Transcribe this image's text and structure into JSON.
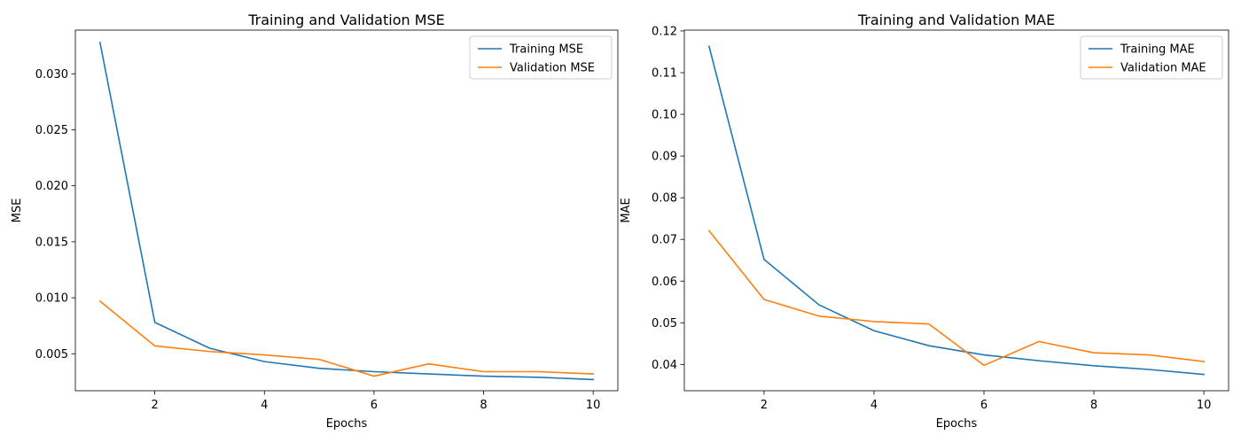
{
  "colors": {
    "training": "#1f77b4",
    "validation": "#ff7f0e",
    "axes": "#000000",
    "background": "#ffffff",
    "legend_border": "#cccccc"
  },
  "chart_data": [
    {
      "type": "line",
      "title": "Training and Validation MSE",
      "xlabel": "Epochs",
      "ylabel": "MSE",
      "x": [
        1,
        2,
        3,
        4,
        5,
        6,
        7,
        8,
        9,
        10
      ],
      "xlim": [
        0.55,
        10.45
      ],
      "ylim": [
        0.0017,
        0.0339
      ],
      "xticks": [
        2,
        4,
        6,
        8,
        10
      ],
      "xtick_labels": [
        "2",
        "4",
        "6",
        "8",
        "10"
      ],
      "yticks": [
        0.005,
        0.01,
        0.015,
        0.02,
        0.025,
        0.03
      ],
      "ytick_labels": [
        "0.005",
        "0.010",
        "0.015",
        "0.020",
        "0.025",
        "0.030"
      ],
      "grid": false,
      "legend_position": "top-right",
      "series": [
        {
          "name": "Training MSE",
          "color": "#1f77b4",
          "values": [
            0.0328,
            0.0078,
            0.0055,
            0.0043,
            0.0037,
            0.0034,
            0.0032,
            0.003,
            0.0029,
            0.0027
          ]
        },
        {
          "name": "Validation MSE",
          "color": "#ff7f0e",
          "values": [
            0.0097,
            0.0057,
            0.0052,
            0.0049,
            0.0045,
            0.003,
            0.0041,
            0.0034,
            0.0034,
            0.0032
          ]
        }
      ]
    },
    {
      "type": "line",
      "title": "Training and Validation MAE",
      "xlabel": "Epochs",
      "ylabel": "MAE",
      "x": [
        1,
        2,
        3,
        4,
        5,
        6,
        7,
        8,
        9,
        10
      ],
      "xlim": [
        0.55,
        10.45
      ],
      "ylim": [
        0.0337,
        0.1202
      ],
      "xticks": [
        2,
        4,
        6,
        8,
        10
      ],
      "xtick_labels": [
        "2",
        "4",
        "6",
        "8",
        "10"
      ],
      "yticks": [
        0.04,
        0.05,
        0.06,
        0.07,
        0.08,
        0.09,
        0.1,
        0.11,
        0.12
      ],
      "ytick_labels": [
        "0.04",
        "0.05",
        "0.06",
        "0.07",
        "0.08",
        "0.09",
        "0.10",
        "0.11",
        "0.12"
      ],
      "grid": false,
      "legend_position": "top-right",
      "series": [
        {
          "name": "Training MAE",
          "color": "#1f77b4",
          "values": [
            0.1163,
            0.0652,
            0.0543,
            0.0481,
            0.0445,
            0.0423,
            0.0409,
            0.0397,
            0.0388,
            0.0376
          ]
        },
        {
          "name": "Validation MAE",
          "color": "#ff7f0e",
          "values": [
            0.0721,
            0.0556,
            0.0516,
            0.0503,
            0.0497,
            0.0398,
            0.0455,
            0.0428,
            0.0423,
            0.0407
          ]
        }
      ]
    }
  ]
}
